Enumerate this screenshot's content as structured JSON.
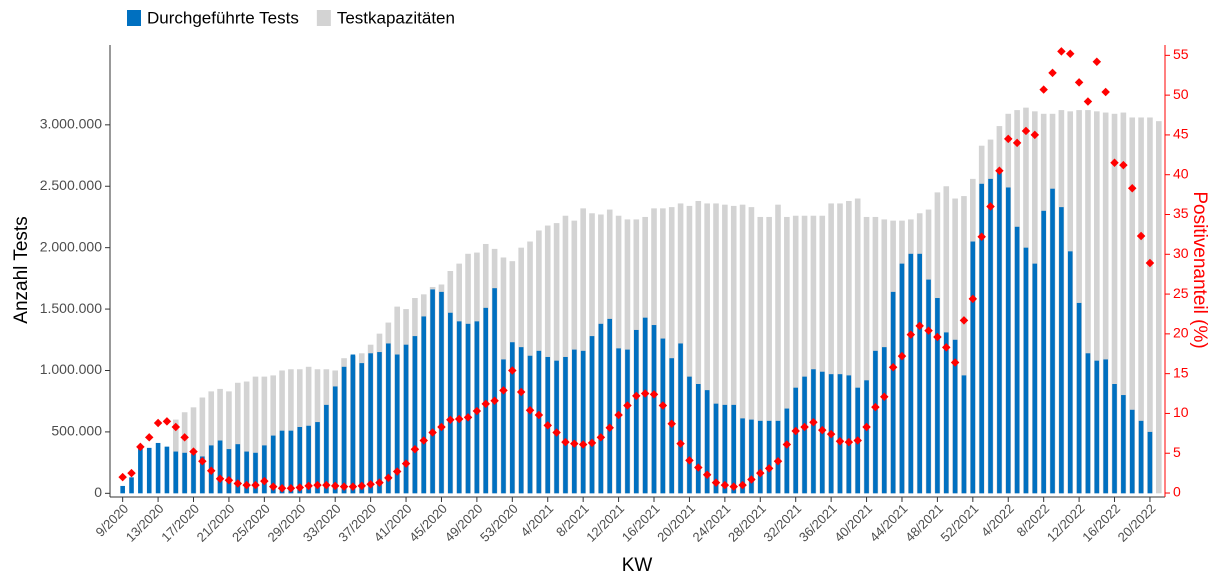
{
  "chart_data": {
    "type": "bar",
    "xlabel": "KW",
    "ylabel": "Anzahl Tests",
    "y2label": "Positivenanteil (%)",
    "grid": false,
    "legend": "top-left",
    "categories": [
      "9/2020",
      null,
      null,
      null,
      "13/2020",
      null,
      null,
      null,
      "17/2020",
      null,
      null,
      null,
      "21/2020",
      null,
      null,
      null,
      "25/2020",
      null,
      null,
      null,
      "29/2020",
      null,
      null,
      null,
      "33/2020",
      null,
      null,
      null,
      "37/2020",
      null,
      null,
      null,
      "41/2020",
      null,
      null,
      null,
      "45/2020",
      null,
      null,
      null,
      "49/2020",
      null,
      null,
      null,
      "53/2020",
      null,
      null,
      null,
      "4/2021",
      null,
      null,
      null,
      "8/2021",
      null,
      null,
      null,
      "12/2021",
      null,
      null,
      null,
      "16/2021",
      null,
      null,
      null,
      "20/2021",
      null,
      null,
      null,
      "24/2021",
      null,
      null,
      null,
      "28/2021",
      null,
      null,
      null,
      "32/2021",
      null,
      null,
      null,
      "36/2021",
      null,
      null,
      null,
      "40/2021",
      null,
      null,
      null,
      "44/2021",
      null,
      null,
      null,
      "48/2021",
      null,
      null,
      null,
      "52/2021",
      null,
      null,
      null,
      "4/2022",
      null,
      null,
      null,
      "8/2022",
      null,
      null,
      null,
      "12/2022",
      null,
      null,
      null,
      "16/2022",
      null,
      null,
      null,
      "20/2022",
      null
    ],
    "ylim": [
      -30000,
      3650000
    ],
    "yticks": [
      0,
      {
        "value": 500000,
        "label": "500.000"
      },
      {
        "value": 1000000,
        "label": "1.000.000"
      },
      {
        "value": 1500000,
        "label": "1.500.000"
      },
      {
        "value": 2000000,
        "label": "2.000.000"
      },
      {
        "value": 2500000,
        "label": "2.500.000"
      },
      {
        "value": 3000000,
        "label": "3.000.000"
      }
    ],
    "y2lim": [
      -0.5,
      56.3
    ],
    "y2ticks": [
      0,
      5,
      10,
      15,
      20,
      25,
      30,
      35,
      40,
      45,
      50,
      55
    ],
    "y2color": "#ff0000",
    "series": [
      {
        "name": "Durchgeführte Tests",
        "color": "#0070c0",
        "values": [
          60000,
          130000,
          380000,
          370000,
          410000,
          380000,
          340000,
          330000,
          320000,
          300000,
          390000,
          430000,
          360000,
          400000,
          340000,
          330000,
          390000,
          470000,
          510000,
          510000,
          540000,
          550000,
          580000,
          720000,
          870000,
          1030000,
          1130000,
          1060000,
          1140000,
          1150000,
          1220000,
          1130000,
          1210000,
          1280000,
          1440000,
          1660000,
          1640000,
          1470000,
          1400000,
          1380000,
          1400000,
          1510000,
          1670000,
          1090000,
          1230000,
          1190000,
          1120000,
          1160000,
          1110000,
          1080000,
          1110000,
          1170000,
          1160000,
          1280000,
          1380000,
          1420000,
          1180000,
          1170000,
          1330000,
          1430000,
          1370000,
          1260000,
          1100000,
          1220000,
          950000,
          890000,
          840000,
          730000,
          720000,
          720000,
          610000,
          600000,
          590000,
          590000,
          590000,
          690000,
          860000,
          950000,
          1010000,
          990000,
          970000,
          970000,
          960000,
          860000,
          920000,
          1160000,
          1190000,
          1640000,
          1870000,
          1950000,
          1950000,
          1740000,
          1590000,
          1310000,
          1250000,
          960000,
          2050000,
          2520000,
          2560000,
          2610000,
          2490000,
          2170000,
          2000000,
          1870000,
          2300000,
          2480000,
          2330000,
          1970000,
          1550000,
          1140000,
          1080000,
          1090000,
          890000,
          800000,
          680000,
          590000,
          500000,
          null
        ]
      },
      {
        "name": "Testkapazitäten",
        "color": "#d3d3d3",
        "values": [
          null,
          null,
          null,
          null,
          null,
          null,
          600000,
          660000,
          700000,
          780000,
          830000,
          850000,
          830000,
          900000,
          910000,
          950000,
          950000,
          960000,
          1000000,
          1010000,
          1010000,
          1030000,
          1010000,
          1010000,
          1000000,
          1100000,
          1120000,
          1140000,
          1210000,
          1300000,
          1390000,
          1520000,
          1500000,
          1590000,
          1620000,
          1680000,
          1700000,
          1810000,
          1870000,
          1950000,
          1960000,
          2030000,
          1990000,
          1920000,
          1890000,
          2000000,
          2050000,
          2140000,
          2180000,
          2200000,
          2260000,
          2220000,
          2320000,
          2280000,
          2270000,
          2310000,
          2260000,
          2230000,
          2230000,
          2250000,
          2320000,
          2320000,
          2330000,
          2360000,
          2340000,
          2380000,
          2360000,
          2360000,
          2350000,
          2340000,
          2350000,
          2330000,
          2250000,
          2250000,
          2350000,
          2250000,
          2260000,
          2260000,
          2260000,
          2260000,
          2360000,
          2360000,
          2380000,
          2400000,
          2250000,
          2250000,
          2230000,
          2220000,
          2220000,
          2230000,
          2280000,
          2310000,
          2450000,
          2500000,
          2400000,
          2420000,
          2560000,
          2830000,
          2880000,
          2990000,
          3090000,
          3120000,
          3140000,
          3110000,
          3090000,
          3090000,
          3120000,
          3110000,
          3120000,
          3120000,
          3110000,
          3100000,
          3090000,
          3100000,
          3060000,
          3060000,
          3060000,
          3030000
        ]
      },
      {
        "axis": "y2",
        "color": "#ff0000",
        "values": [
          2,
          2.5,
          5.8,
          7,
          8.8,
          9,
          8.3,
          7,
          5.2,
          4,
          2.8,
          1.8,
          1.6,
          1.2,
          1,
          1,
          1.5,
          0.8,
          0.6,
          0.6,
          0.7,
          0.9,
          1,
          1,
          0.9,
          0.8,
          0.8,
          0.9,
          1.1,
          1.3,
          1.9,
          2.7,
          3.7,
          5.5,
          6.6,
          7.6,
          8.3,
          9.2,
          9.3,
          9.5,
          10.3,
          11.2,
          11.6,
          12.9,
          15.4,
          12.7,
          10.4,
          9.8,
          8.5,
          7.6,
          6.4,
          6.2,
          6.1,
          6.3,
          7,
          8.2,
          9.8,
          11,
          12.2,
          12.5,
          12.4,
          11,
          8.7,
          6.2,
          4.1,
          3.2,
          2.3,
          1.3,
          1,
          0.8,
          1,
          1.7,
          2.5,
          3.1,
          4,
          6.1,
          7.8,
          8.3,
          8.9,
          7.9,
          7.4,
          6.5,
          6.4,
          6.6,
          8.3,
          10.8,
          12.1,
          15.8,
          17.2,
          19.9,
          21,
          20.4,
          19.6,
          18.3,
          16.4,
          21.7,
          24.4,
          32.2,
          36,
          40.5,
          44.5,
          44,
          45.5,
          45,
          50.7,
          52.8,
          55.5,
          55.2,
          51.6,
          49.2,
          54.2,
          50.4,
          41.5,
          41.2,
          38.3,
          32.3,
          28.9,
          null
        ]
      }
    ]
  }
}
